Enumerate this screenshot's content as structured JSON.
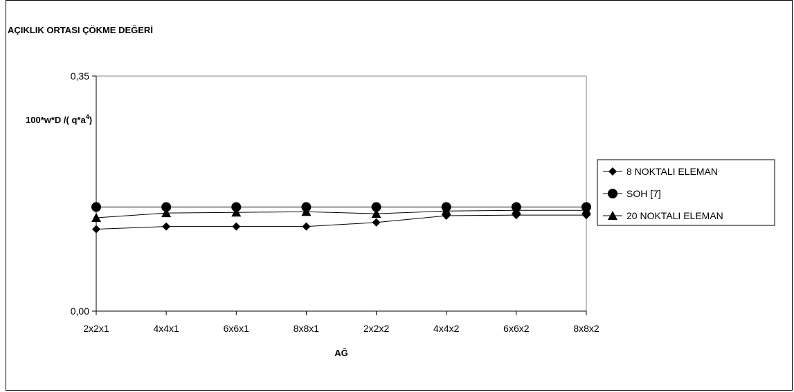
{
  "chart_data": {
    "type": "line",
    "title": "AÇIKLIK ORTASI ÇÖKME DEĞERİ",
    "ylabel": "100*w*D /( q*a",
    "ylabel_sup": "4",
    "ylabel_end": ")",
    "xlabel": "AĞ",
    "categories": [
      "2x2x1",
      "4x4x1",
      "6x6x1",
      "8x8x1",
      "2x2x2",
      "4x4x2",
      "6x6x2",
      "8x8x2"
    ],
    "ylim": [
      0,
      0.35
    ],
    "yticks": [
      "0,00",
      "0,35"
    ],
    "grid": false,
    "legend_position": "right",
    "series": [
      {
        "name": "8 NOKTALI ELEMAN",
        "marker": "diamond",
        "color": "#000000",
        "values": [
          0.122,
          0.126,
          0.126,
          0.126,
          0.132,
          0.142,
          0.143,
          0.143
        ]
      },
      {
        "name": "SOH [7]",
        "marker": "circle",
        "color": "#000000",
        "values": [
          0.155,
          0.155,
          0.155,
          0.155,
          0.155,
          0.155,
          0.155,
          0.155
        ]
      },
      {
        "name": "20 NOKTALI ELEMAN",
        "marker": "triangle",
        "color": "#000000",
        "values": [
          0.139,
          0.146,
          0.147,
          0.148,
          0.145,
          0.149,
          0.15,
          0.15
        ]
      }
    ]
  }
}
